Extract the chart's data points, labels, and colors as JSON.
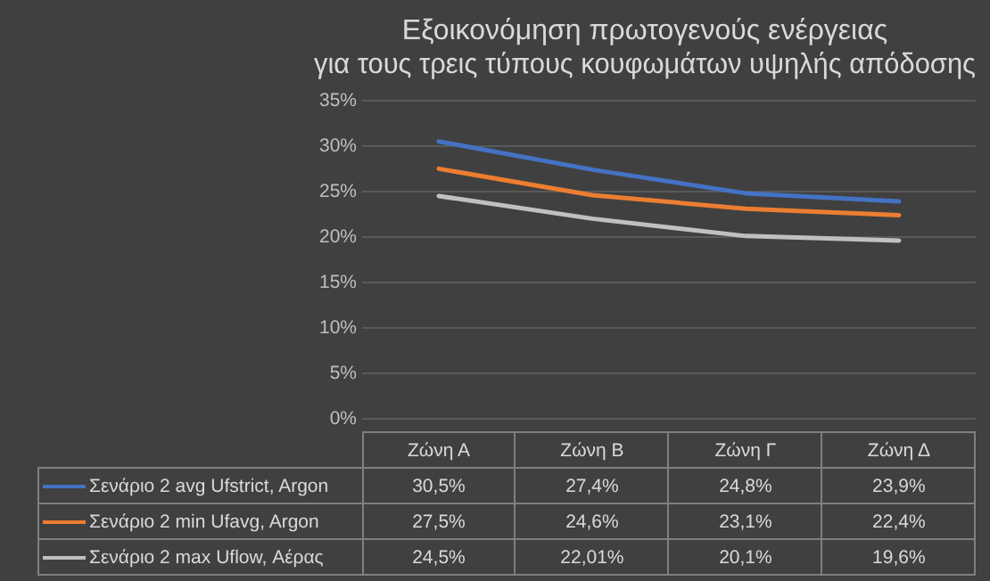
{
  "chart_data": {
    "type": "line",
    "title": "Εξοικονόμηση πρωτογενούς ενέργειας\nγια τους τρεις τύπους κουφωμάτων υψηλής απόδοσης",
    "categories": [
      "Ζώνη Α",
      "Ζώνη Β",
      "Ζώνη Γ",
      "Ζώνη Δ"
    ],
    "series": [
      {
        "name": "Σενάριο 2 avg Ufstrict, Argon",
        "color": "#4472c4",
        "values": [
          30.5,
          27.4,
          24.8,
          23.9
        ],
        "value_labels": [
          "30,5%",
          "27,4%",
          "24,8%",
          "23,9%"
        ]
      },
      {
        "name": "Σενάριο 2 min Ufavg, Argon",
        "color": "#ed7d31",
        "values": [
          27.5,
          24.6,
          23.1,
          22.4
        ],
        "value_labels": [
          "27,5%",
          "24,6%",
          "23,1%",
          "22,4%"
        ]
      },
      {
        "name": "Σενάριο 2 max Uflow, Αέρας",
        "color": "#c0c0c0",
        "values": [
          24.5,
          22.01,
          20.1,
          19.6
        ],
        "value_labels": [
          "24,5%",
          "22,01%",
          "20,1%",
          "19,6%"
        ]
      }
    ],
    "ylim": [
      0,
      35
    ],
    "yticks": [
      {
        "value": 0,
        "label": "0%"
      },
      {
        "value": 5,
        "label": "5%"
      },
      {
        "value": 10,
        "label": "10%"
      },
      {
        "value": 15,
        "label": "15%"
      },
      {
        "value": 20,
        "label": "20%"
      },
      {
        "value": 25,
        "label": "25%"
      },
      {
        "value": 30,
        "label": "30%"
      },
      {
        "value": 35,
        "label": "35%"
      }
    ],
    "grid": "y",
    "legend": "bottom",
    "marker": "none",
    "line_style": "solid"
  }
}
